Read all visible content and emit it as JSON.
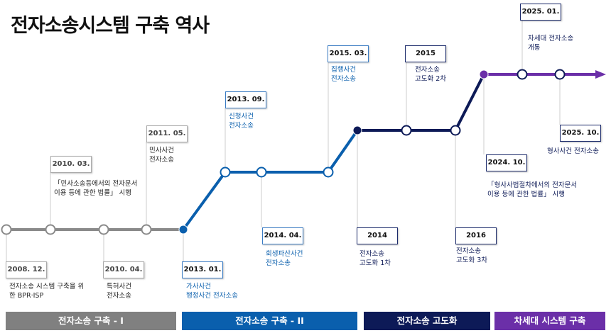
{
  "title": "전자소송시스템 구축 역사",
  "colors": {
    "phase1": "#808080",
    "phase2": "#0a5fad",
    "phase3": "#0d1a57",
    "phase4": "#6b2fa8"
  },
  "events": [
    {
      "date": "2008. 12.",
      "text": "전자소송 시스템 구축을 위\n한 BPR·ISP"
    },
    {
      "date": "2010. 03.",
      "text": "「민사소송등에서의 전자문서\n이용 등에 관한 법률」 시행"
    },
    {
      "date": "2010. 04.",
      "text": "특허사건\n전자소송"
    },
    {
      "date": "2011. 05.",
      "text": "민사사건\n전자소송"
    },
    {
      "date": "2013. 01.",
      "text": "가사사건\n행정사건 전자소송"
    },
    {
      "date": "2013. 09.",
      "text": "신청사건\n전자소송"
    },
    {
      "date": "2014. 04.",
      "text": "회생파산사건\n전자소송"
    },
    {
      "date": "2015. 03.",
      "text": "집행사건\n전자소송"
    },
    {
      "date": "2014",
      "text": "전자소송\n고도화 1차"
    },
    {
      "date": "2015",
      "text": "전자소송\n고도화 2차"
    },
    {
      "date": "2016",
      "text": "전자소송\n고도화 3차"
    },
    {
      "date": "2024. 10.",
      "text": "「형사사법절차에서의 전자문서\n이용 등에 관한 법률」 시행"
    },
    {
      "date": "2025. 01.",
      "text": "차세대 전자소송\n개통"
    },
    {
      "date": "2025. 10.",
      "text": "형사사건 전자소송"
    }
  ],
  "phases": [
    {
      "label": "전자소송 구축 - I"
    },
    {
      "label": "전자소송 구축 - II"
    },
    {
      "label": "전자소송 고도화"
    },
    {
      "label": "차세대 시스템 구축"
    }
  ]
}
